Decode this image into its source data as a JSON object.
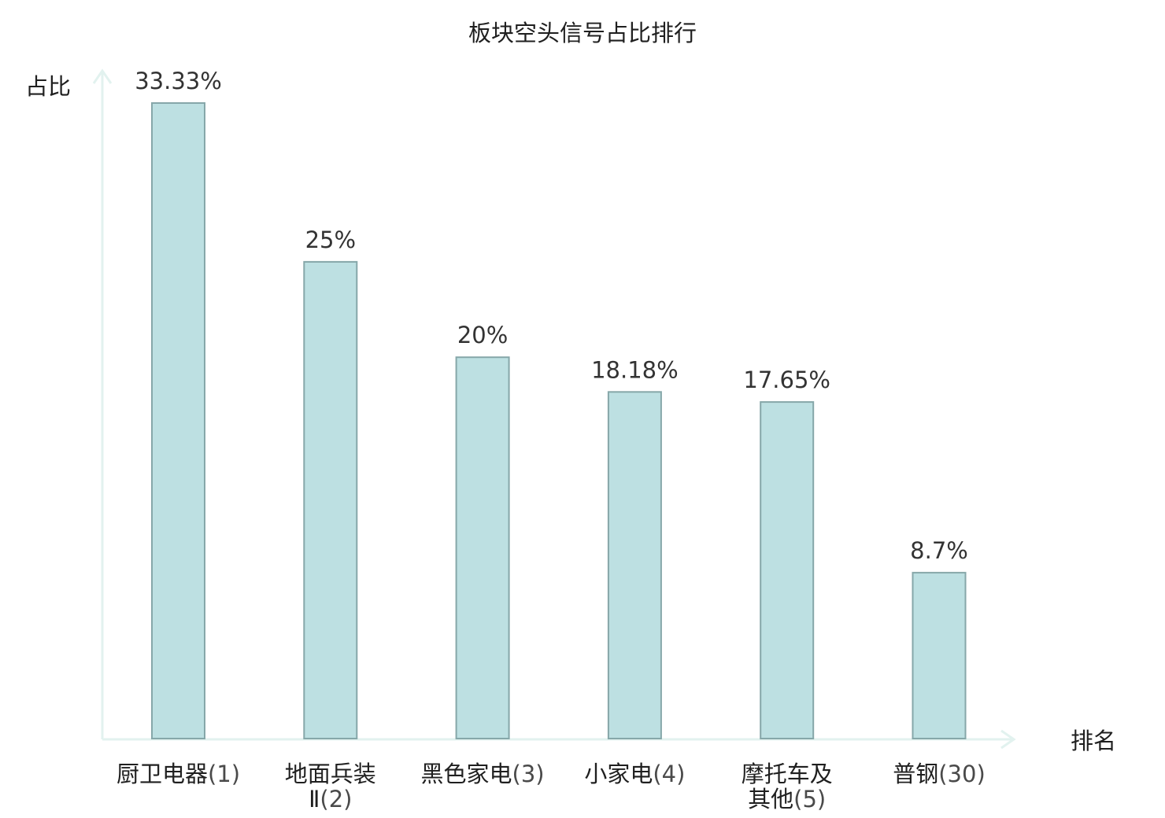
{
  "chart_data": {
    "type": "bar",
    "title": "板块空头信号占比排行",
    "xlabel": "排名",
    "ylabel": "占比",
    "categories": [
      {
        "name_lines": [
          "厨卫电器"
        ],
        "rank": "(1)",
        "highlight": false
      },
      {
        "name_lines": [
          "地面兵装",
          "Ⅱ"
        ],
        "rank": "(2)",
        "highlight": false
      },
      {
        "name_lines": [
          "黑色家电"
        ],
        "rank": "(3)",
        "highlight": false
      },
      {
        "name_lines": [
          "小家电"
        ],
        "rank": "(4)",
        "highlight": false
      },
      {
        "name_lines": [
          "摩托车及",
          "其他"
        ],
        "rank": "(5)",
        "highlight": false
      },
      {
        "name_lines": [
          "普钢"
        ],
        "rank": "(30)",
        "highlight": true
      }
    ],
    "values": [
      33.33,
      25,
      20,
      18.18,
      17.65,
      8.7
    ],
    "value_labels": [
      "33.33%",
      "25%",
      "20%",
      "18.18%",
      "17.65%",
      "8.7%"
    ],
    "ylim": [
      0,
      33.33
    ],
    "grid": false,
    "legend": "none",
    "colors": {
      "bar_fill": "#bde0e2",
      "bar_stroke": "#86a7a9",
      "axis": "#e2f2ef",
      "highlight_text": "#e0141e",
      "value_text": "#333333",
      "text": "#1f1f1f",
      "rank_text": "#4a4a4a"
    }
  }
}
